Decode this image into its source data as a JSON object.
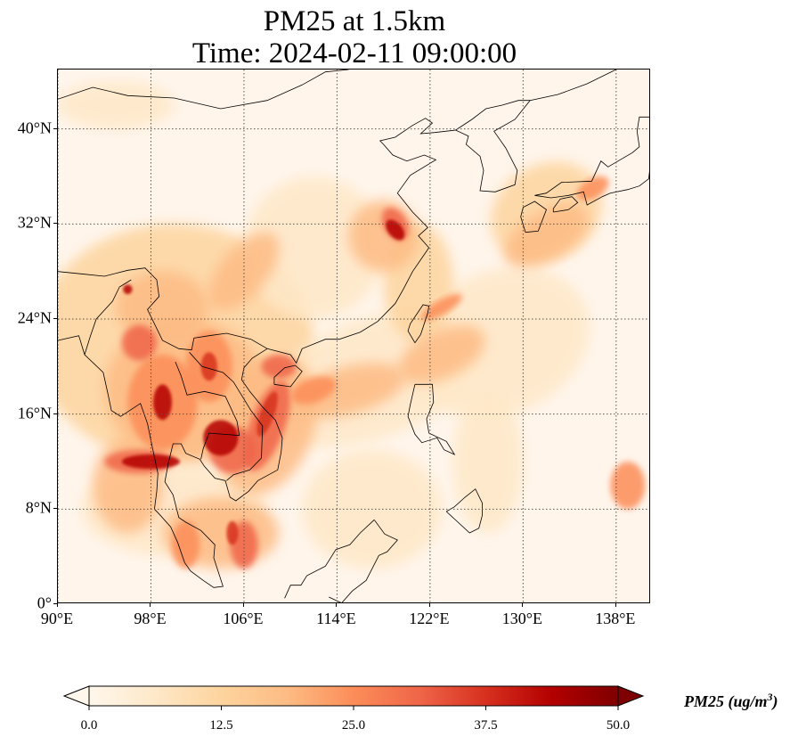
{
  "title_line1": "PM25 at 1.5km",
  "title_line2": "Time: 2024-02-11 09:00:00",
  "map": {
    "projection": "PlateCarree",
    "lon_range": [
      90,
      141
    ],
    "lat_range": [
      0,
      45
    ],
    "gridlines": "dotted",
    "x_ticks": [
      "90°E",
      "98°E",
      "106°E",
      "114°E",
      "122°E",
      "130°E",
      "138°E"
    ],
    "y_ticks": [
      "0°",
      "8°N",
      "16°N",
      "24°N",
      "32°N",
      "40°N"
    ],
    "colormap": "OrRd",
    "colors": [
      "#fff7ec",
      "#fee8c8",
      "#fdd49e",
      "#fdbb84",
      "#fc8d59",
      "#ef6548",
      "#d7301f",
      "#b30000",
      "#7f0000"
    ]
  },
  "colorbar": {
    "label": "PM25 (ug/m",
    "label_exp": "3",
    "label_close": ")",
    "min": 0.0,
    "max": 50.0,
    "extend": "both",
    "ticks": [
      "0.0",
      "12.5",
      "25.0",
      "37.5",
      "50.0"
    ]
  }
}
